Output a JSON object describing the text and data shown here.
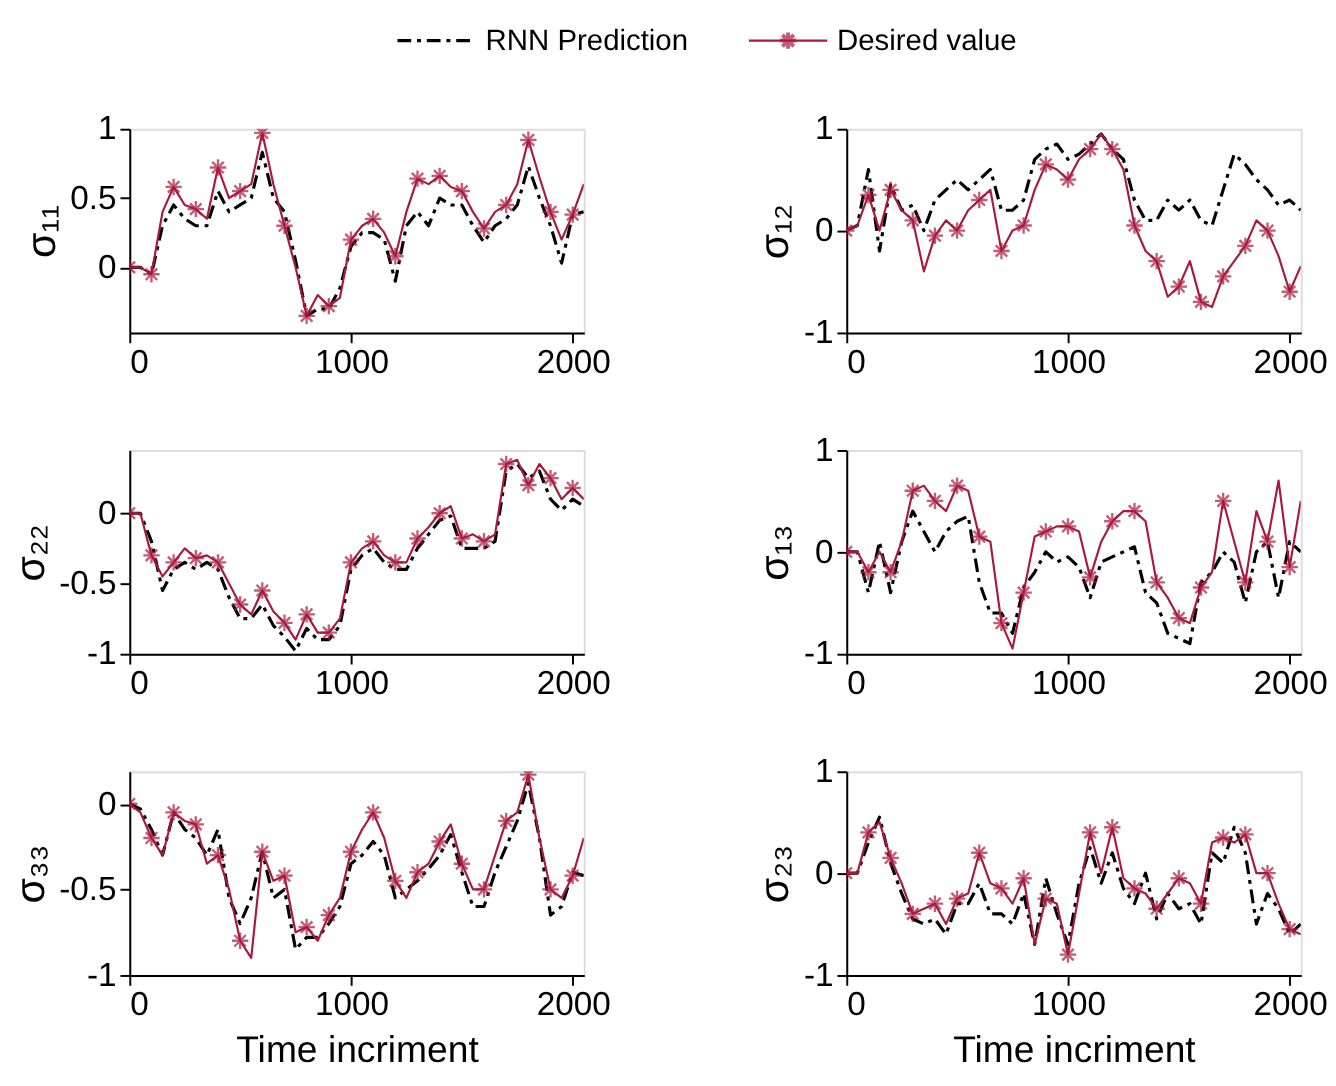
{
  "chart_data": [
    {
      "type": "line",
      "ylabel": "σ₁₁",
      "legend": "top",
      "xlim": [
        0,
        2050
      ],
      "xticks": [
        0,
        1000,
        2000
      ],
      "ylim": [
        -0.47,
        1
      ],
      "yticks": [
        0,
        0.5,
        1
      ],
      "grid": false,
      "x": [
        0,
        50,
        100,
        150,
        200,
        250,
        300,
        350,
        400,
        450,
        500,
        550,
        600,
        650,
        700,
        750,
        800,
        850,
        900,
        950,
        1000,
        1050,
        1100,
        1150,
        1200,
        1250,
        1300,
        1350,
        1400,
        1450,
        1500,
        1550,
        1600,
        1650,
        1700,
        1750,
        1800,
        1850,
        1900,
        1950,
        2000,
        2050
      ],
      "series": [
        {
          "name": "RNN Prediction",
          "color": "#000000",
          "line_style": "dashed",
          "marker": "none",
          "values": [
            0,
            0,
            -0.05,
            0.3,
            0.45,
            0.35,
            0.3,
            0.3,
            0.55,
            0.4,
            0.45,
            0.5,
            0.83,
            0.5,
            0.4,
            0.05,
            -0.35,
            -0.3,
            -0.3,
            -0.15,
            0.15,
            0.25,
            0.25,
            0.2,
            -0.1,
            0.3,
            0.4,
            0.3,
            0.5,
            0.45,
            0.45,
            0.3,
            0.18,
            0.3,
            0.35,
            0.45,
            0.73,
            0.5,
            0.3,
            0.03,
            0.38,
            0.4
          ]
        },
        {
          "name": "Desired value",
          "color": "#a8193d",
          "line_style": "solid",
          "marker": "cross",
          "values": [
            0,
            0,
            -0.05,
            0.4,
            0.58,
            0.45,
            0.42,
            0.35,
            0.72,
            0.5,
            0.55,
            0.6,
            0.97,
            0.6,
            0.3,
            0.0,
            -0.35,
            -0.2,
            -0.28,
            -0.22,
            0.2,
            0.3,
            0.35,
            0.25,
            0.08,
            0.4,
            0.64,
            0.6,
            0.66,
            0.58,
            0.55,
            0.4,
            0.28,
            0.4,
            0.45,
            0.6,
            0.92,
            0.65,
            0.4,
            0.2,
            0.38,
            0.6
          ]
        }
      ]
    },
    {
      "type": "line",
      "ylabel": "σ₁₂",
      "xlim": [
        0,
        2050
      ],
      "xticks": [
        0,
        1000,
        2000
      ],
      "ylim": [
        -1,
        1
      ],
      "yticks": [
        -1,
        0,
        1
      ],
      "grid": false,
      "x": [
        0,
        50,
        100,
        150,
        200,
        250,
        300,
        350,
        400,
        450,
        500,
        550,
        600,
        650,
        700,
        750,
        800,
        850,
        900,
        950,
        1000,
        1050,
        1100,
        1150,
        1200,
        1250,
        1300,
        1350,
        1400,
        1450,
        1500,
        1550,
        1600,
        1650,
        1700,
        1750,
        1800,
        1850,
        1900,
        1950,
        2000,
        2050
      ],
      "series": [
        {
          "color": "#000000",
          "line_style": "dashed",
          "marker": "none",
          "values": [
            0,
            0.05,
            0.6,
            -0.2,
            0.45,
            0.2,
            0.25,
            0.0,
            0.3,
            0.4,
            0.5,
            0.4,
            0.5,
            0.6,
            0.2,
            0.2,
            0.3,
            0.7,
            0.8,
            0.85,
            0.7,
            0.75,
            0.85,
            0.95,
            0.8,
            0.7,
            0.3,
            0.1,
            0.1,
            0.3,
            0.2,
            0.3,
            0.1,
            0.05,
            0.4,
            0.75,
            0.65,
            0.5,
            0.4,
            0.25,
            0.3,
            0.2
          ]
        },
        {
          "color": "#a8193d",
          "line_style": "solid",
          "marker": "cross",
          "values": [
            0,
            0.05,
            0.35,
            0.0,
            0.4,
            0.2,
            0.1,
            -0.4,
            -0.05,
            0.1,
            0.0,
            0.2,
            0.3,
            0.4,
            -0.2,
            0.0,
            0.05,
            0.4,
            0.65,
            0.6,
            0.5,
            0.7,
            0.8,
            0.95,
            0.8,
            0.6,
            0.05,
            -0.2,
            -0.3,
            -0.65,
            -0.55,
            -0.3,
            -0.7,
            -0.75,
            -0.45,
            -0.3,
            -0.15,
            0.1,
            0.0,
            -0.25,
            -0.6,
            -0.35
          ]
        }
      ]
    },
    {
      "type": "line",
      "ylabel": "σ₂₂",
      "xlim": [
        0,
        2050
      ],
      "xticks": [
        0,
        1000,
        2000
      ],
      "ylim": [
        -1,
        0.45
      ],
      "yticks": [
        -1,
        -0.5,
        0
      ],
      "grid": false,
      "x": [
        0,
        50,
        100,
        150,
        200,
        250,
        300,
        350,
        400,
        450,
        500,
        550,
        600,
        650,
        700,
        750,
        800,
        850,
        900,
        950,
        1000,
        1050,
        1100,
        1150,
        1200,
        1250,
        1300,
        1350,
        1400,
        1450,
        1500,
        1550,
        1600,
        1650,
        1700,
        1750,
        1800,
        1850,
        1900,
        1950,
        2000,
        2050
      ],
      "series": [
        {
          "color": "#000000",
          "line_style": "dashed",
          "marker": "none",
          "values": [
            0,
            0,
            -0.2,
            -0.55,
            -0.4,
            -0.35,
            -0.4,
            -0.35,
            -0.4,
            -0.6,
            -0.75,
            -0.75,
            -0.65,
            -0.8,
            -0.88,
            -0.98,
            -0.82,
            -0.9,
            -0.9,
            -0.8,
            -0.4,
            -0.3,
            -0.25,
            -0.35,
            -0.4,
            -0.4,
            -0.25,
            -0.15,
            -0.05,
            -0.02,
            -0.25,
            -0.25,
            -0.25,
            -0.2,
            0.3,
            0.35,
            0.25,
            0.3,
            0.1,
            0.02,
            0.1,
            0.05
          ]
        },
        {
          "color": "#a8193d",
          "line_style": "solid",
          "marker": "cross",
          "values": [
            0,
            0,
            -0.3,
            -0.45,
            -0.35,
            -0.25,
            -0.32,
            -0.3,
            -0.35,
            -0.5,
            -0.65,
            -0.72,
            -0.55,
            -0.7,
            -0.78,
            -0.9,
            -0.72,
            -0.85,
            -0.85,
            -0.75,
            -0.35,
            -0.25,
            -0.2,
            -0.3,
            -0.35,
            -0.35,
            -0.18,
            -0.1,
            0.0,
            0.05,
            -0.18,
            -0.15,
            -0.2,
            -0.15,
            0.35,
            0.38,
            0.2,
            0.35,
            0.25,
            0.1,
            0.18,
            0.1
          ]
        }
      ]
    },
    {
      "type": "line",
      "ylabel": "σ₁₃",
      "xlim": [
        0,
        2050
      ],
      "xticks": [
        0,
        1000,
        2000
      ],
      "ylim": [
        -1,
        1
      ],
      "yticks": [
        -1,
        0,
        1
      ],
      "grid": false,
      "x": [
        0,
        50,
        100,
        150,
        200,
        250,
        300,
        350,
        400,
        450,
        500,
        550,
        600,
        650,
        700,
        750,
        800,
        850,
        900,
        950,
        1000,
        1050,
        1100,
        1150,
        1200,
        1250,
        1300,
        1350,
        1400,
        1450,
        1500,
        1550,
        1600,
        1650,
        1700,
        1750,
        1800,
        1850,
        1900,
        1950,
        2000,
        2050
      ],
      "series": [
        {
          "color": "#000000",
          "line_style": "dashed",
          "marker": "none",
          "values": [
            0,
            0,
            -0.4,
            0.1,
            -0.4,
            0.1,
            0.4,
            0.2,
            0.0,
            0.2,
            0.3,
            0.35,
            -0.3,
            -0.6,
            -0.6,
            -0.8,
            -0.35,
            -0.2,
            0.0,
            -0.1,
            -0.05,
            -0.15,
            -0.45,
            -0.1,
            -0.05,
            0.0,
            0.05,
            -0.4,
            -0.5,
            -0.8,
            -0.85,
            -0.9,
            -0.3,
            -0.2,
            0.0,
            -0.1,
            -0.5,
            0.0,
            0.1,
            -0.45,
            0.1,
            0.0
          ]
        },
        {
          "color": "#a8193d",
          "line_style": "solid",
          "marker": "cross",
          "values": [
            0,
            0,
            -0.2,
            0.0,
            -0.2,
            0.1,
            0.6,
            0.65,
            0.5,
            0.4,
            0.65,
            0.6,
            0.15,
            0.1,
            -0.7,
            -0.95,
            -0.4,
            0.15,
            0.2,
            0.25,
            0.25,
            0.2,
            -0.25,
            0.1,
            0.3,
            0.4,
            0.4,
            0.3,
            -0.3,
            -0.45,
            -0.65,
            -0.7,
            -0.35,
            -0.2,
            0.5,
            0.1,
            -0.3,
            0.4,
            0.1,
            0.7,
            -0.15,
            0.5
          ]
        }
      ]
    },
    {
      "type": "line",
      "ylabel": "σ₃₃",
      "xlabel": "Time incriment",
      "xlim": [
        0,
        2050
      ],
      "xticks": [
        0,
        1000,
        2000
      ],
      "ylim": [
        -1,
        0.19
      ],
      "yticks": [
        -1,
        -0.5,
        0
      ],
      "grid": false,
      "x": [
        0,
        50,
        100,
        150,
        200,
        250,
        300,
        350,
        400,
        450,
        500,
        550,
        600,
        650,
        700,
        750,
        800,
        850,
        900,
        950,
        1000,
        1050,
        1100,
        1150,
        1200,
        1250,
        1300,
        1350,
        1400,
        1450,
        1500,
        1550,
        1600,
        1650,
        1700,
        1750,
        1800,
        1850,
        1900,
        1950,
        2000,
        2050
      ],
      "series": [
        {
          "color": "#000000",
          "line_style": "dashed",
          "marker": "none",
          "values": [
            0,
            -0.03,
            -0.15,
            -0.3,
            -0.05,
            -0.15,
            -0.2,
            -0.3,
            -0.15,
            -0.55,
            -0.7,
            -0.55,
            -0.28,
            -0.55,
            -0.5,
            -0.85,
            -0.78,
            -0.78,
            -0.7,
            -0.6,
            -0.35,
            -0.3,
            -0.22,
            -0.3,
            -0.55,
            -0.5,
            -0.45,
            -0.38,
            -0.3,
            -0.18,
            -0.4,
            -0.6,
            -0.6,
            -0.4,
            -0.25,
            -0.1,
            0.12,
            -0.2,
            -0.65,
            -0.6,
            -0.4,
            -0.42
          ]
        },
        {
          "color": "#a8193d",
          "line_style": "solid",
          "marker": "cross",
          "values": [
            0,
            -0.05,
            -0.2,
            -0.3,
            -0.05,
            -0.1,
            -0.12,
            -0.35,
            -0.3,
            -0.5,
            -0.8,
            -0.9,
            -0.28,
            -0.45,
            -0.42,
            -0.75,
            -0.72,
            -0.8,
            -0.65,
            -0.55,
            -0.28,
            -0.15,
            -0.05,
            -0.2,
            -0.45,
            -0.55,
            -0.4,
            -0.35,
            -0.22,
            -0.12,
            -0.35,
            -0.5,
            -0.5,
            -0.3,
            -0.1,
            -0.05,
            0.17,
            -0.2,
            -0.5,
            -0.55,
            -0.42,
            -0.2
          ]
        }
      ]
    },
    {
      "type": "line",
      "ylabel": "σ₂₃",
      "xlabel": "Time incriment",
      "xlim": [
        0,
        2050
      ],
      "xticks": [
        0,
        1000,
        2000
      ],
      "ylim": [
        -1,
        1
      ],
      "yticks": [
        -1,
        0,
        1
      ],
      "grid": false,
      "x": [
        0,
        50,
        100,
        150,
        200,
        250,
        300,
        350,
        400,
        450,
        500,
        550,
        600,
        650,
        700,
        750,
        800,
        850,
        900,
        950,
        1000,
        1050,
        1100,
        1150,
        1200,
        1250,
        1300,
        1350,
        1400,
        1450,
        1500,
        1550,
        1600,
        1650,
        1700,
        1750,
        1800,
        1850,
        1900,
        1950,
        2000,
        2050
      ],
      "series": [
        {
          "color": "#000000",
          "line_style": "dashed",
          "marker": "none",
          "values": [
            0,
            0,
            0.3,
            0.55,
            0.1,
            -0.2,
            -0.45,
            -0.5,
            -0.45,
            -0.6,
            -0.3,
            -0.3,
            -0.1,
            -0.4,
            -0.4,
            -0.5,
            -0.2,
            -0.7,
            -0.05,
            -0.4,
            -0.7,
            -0.1,
            0.25,
            -0.1,
            0.2,
            -0.15,
            -0.3,
            0.0,
            -0.45,
            -0.2,
            -0.35,
            -0.3,
            -0.5,
            0.2,
            0.1,
            0.45,
            0.2,
            -0.5,
            -0.2,
            -0.35,
            -0.6,
            -0.5
          ]
        },
        {
          "color": "#a8193d",
          "line_style": "solid",
          "marker": "cross",
          "values": [
            0,
            0,
            0.4,
            0.5,
            0.15,
            -0.1,
            -0.4,
            -0.35,
            -0.3,
            -0.5,
            -0.25,
            -0.2,
            0.2,
            -0.1,
            -0.15,
            -0.3,
            -0.05,
            -0.7,
            -0.25,
            -0.3,
            -0.8,
            -0.2,
            0.4,
            0.0,
            0.45,
            -0.05,
            -0.15,
            -0.2,
            -0.35,
            -0.2,
            -0.05,
            -0.1,
            -0.3,
            0.3,
            0.35,
            0.3,
            0.38,
            0.0,
            0.0,
            -0.3,
            -0.55,
            -0.6
          ]
        }
      ]
    }
  ]
}
